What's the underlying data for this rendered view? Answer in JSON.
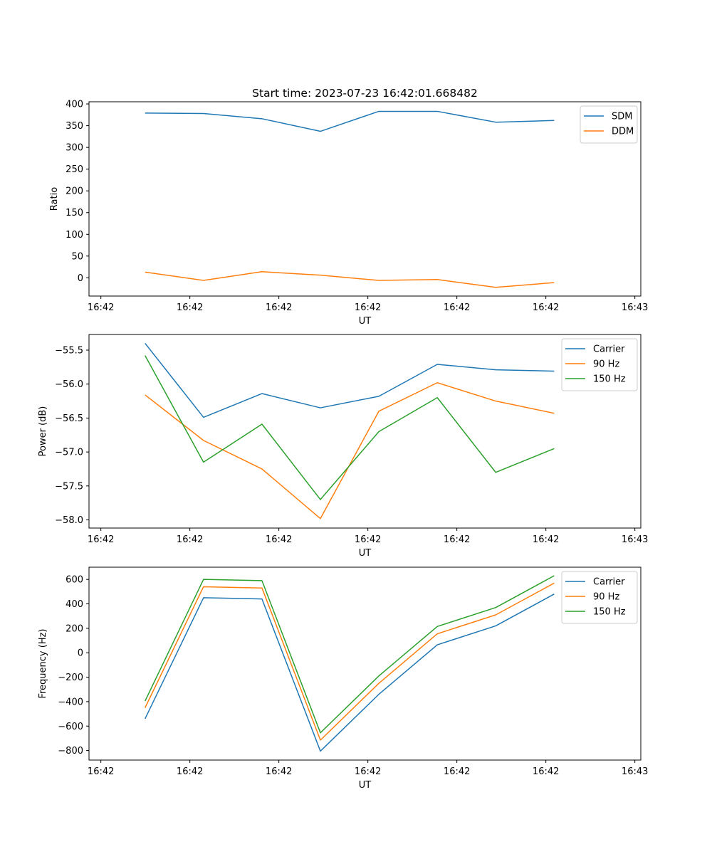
{
  "chart_data": [
    {
      "type": "line",
      "title": "Start time: 2023-07-23 16:42:01.668482",
      "xlabel": "UT",
      "ylabel": "Ratio",
      "xlim": [
        0,
        9.3
      ],
      "ylim": [
        -42,
        405
      ],
      "x_ticks": [
        0.2,
        1.7,
        3.2,
        4.7,
        6.2,
        7.7,
        9.2
      ],
      "x_tick_labels": [
        "16:42",
        "16:42",
        "16:42",
        "16:42",
        "16:42",
        "16:42",
        "16:43"
      ],
      "y_ticks": [
        0,
        50,
        100,
        150,
        200,
        250,
        300,
        350,
        400
      ],
      "y_tick_labels": [
        "0",
        "50",
        "100",
        "150",
        "200",
        "250",
        "300",
        "350",
        "400"
      ],
      "x": [
        0.945,
        1.93,
        2.915,
        3.9,
        4.885,
        5.87,
        6.855,
        7.84
      ],
      "legend_loc": "upper right",
      "series": [
        {
          "name": "SDM",
          "color": "#1f77b4",
          "values": [
            379,
            378,
            366,
            337,
            383,
            383,
            358,
            362
          ]
        },
        {
          "name": "DDM",
          "color": "#ff7f0e",
          "values": [
            13,
            -6,
            14,
            6,
            -6,
            -4,
            -22,
            -11
          ]
        }
      ]
    },
    {
      "type": "line",
      "title": "",
      "xlabel": "UT",
      "ylabel": "Power (dB)",
      "xlim": [
        0,
        9.3
      ],
      "ylim": [
        -58.12,
        -55.27
      ],
      "x_ticks": [
        0.2,
        1.7,
        3.2,
        4.7,
        6.2,
        7.7,
        9.2
      ],
      "x_tick_labels": [
        "16:42",
        "16:42",
        "16:42",
        "16:42",
        "16:42",
        "16:42",
        "16:43"
      ],
      "y_ticks": [
        -58.0,
        -57.5,
        -57.0,
        -56.5,
        -56.0,
        -55.5
      ],
      "y_tick_labels": [
        "−58.0",
        "−57.5",
        "−57.0",
        "−56.5",
        "−56.0",
        "−55.5"
      ],
      "x": [
        0.945,
        1.93,
        2.915,
        3.9,
        4.885,
        5.87,
        6.855,
        7.84
      ],
      "legend_loc": "upper right",
      "series": [
        {
          "name": "Carrier",
          "color": "#1f77b4",
          "values": [
            -55.4,
            -56.49,
            -56.14,
            -56.35,
            -56.18,
            -55.71,
            -55.79,
            -55.81
          ]
        },
        {
          "name": "90 Hz",
          "color": "#ff7f0e",
          "values": [
            -56.16,
            -56.83,
            -57.25,
            -57.98,
            -56.4,
            -55.98,
            -56.25,
            -56.43
          ]
        },
        {
          "name": "150 Hz",
          "color": "#2ca02c",
          "values": [
            -55.58,
            -57.15,
            -56.59,
            -57.7,
            -56.7,
            -56.2,
            -57.3,
            -56.95
          ]
        }
      ]
    },
    {
      "type": "line",
      "title": "",
      "xlabel": "UT",
      "ylabel": "Frequency (Hz)",
      "xlim": [
        0,
        9.3
      ],
      "ylim": [
        -878,
        700
      ],
      "x_ticks": [
        0.2,
        1.7,
        3.2,
        4.7,
        6.2,
        7.7,
        9.2
      ],
      "x_tick_labels": [
        "16:42",
        "16:42",
        "16:42",
        "16:42",
        "16:42",
        "16:42",
        "16:43"
      ],
      "y_ticks": [
        -800,
        -600,
        -400,
        -200,
        0,
        200,
        400,
        600
      ],
      "y_tick_labels": [
        "−800",
        "−600",
        "−400",
        "−200",
        "0",
        "200",
        "400",
        "600"
      ],
      "x": [
        0.945,
        1.93,
        2.915,
        3.9,
        4.885,
        5.87,
        6.855,
        7.84
      ],
      "legend_loc": "upper right",
      "series": [
        {
          "name": "Carrier",
          "color": "#1f77b4",
          "values": [
            -540,
            450,
            440,
            -805,
            -340,
            65,
            220,
            480
          ]
        },
        {
          "name": "90 Hz",
          "color": "#ff7f0e",
          "values": [
            -450,
            540,
            530,
            -715,
            -250,
            155,
            310,
            570
          ]
        },
        {
          "name": "150 Hz",
          "color": "#2ca02c",
          "values": [
            -395,
            600,
            590,
            -655,
            -190,
            215,
            370,
            630
          ]
        }
      ]
    }
  ]
}
